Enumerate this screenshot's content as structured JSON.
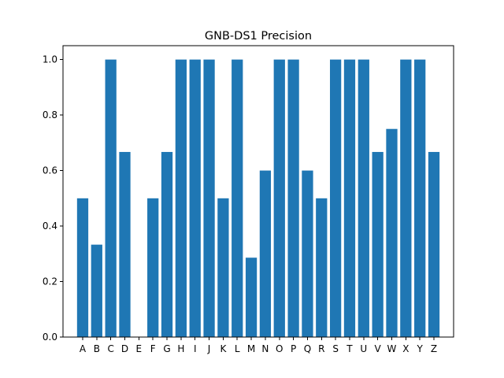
{
  "chart_data": {
    "type": "bar",
    "title": "GNB-DS1 Precision",
    "xlabel": "",
    "ylabel": "",
    "categories": [
      "A",
      "B",
      "C",
      "D",
      "E",
      "F",
      "G",
      "H",
      "I",
      "J",
      "K",
      "L",
      "M",
      "N",
      "O",
      "P",
      "Q",
      "R",
      "S",
      "T",
      "U",
      "V",
      "W",
      "X",
      "Y",
      "Z"
    ],
    "values": [
      0.5,
      0.333,
      1.0,
      0.667,
      0.0,
      0.5,
      0.667,
      1.0,
      1.0,
      1.0,
      0.5,
      1.0,
      0.286,
      0.6,
      1.0,
      1.0,
      0.6,
      0.5,
      1.0,
      1.0,
      1.0,
      0.667,
      0.75,
      1.0,
      1.0,
      0.667
    ],
    "ylim": [
      0,
      1.05
    ],
    "yticks": [
      0.0,
      0.2,
      0.4,
      0.6,
      0.8,
      1.0
    ],
    "ytick_labels": [
      "0.0",
      "0.2",
      "0.4",
      "0.6",
      "0.8",
      "1.0"
    ],
    "grid": false,
    "bar_color": "#1f77b4"
  }
}
